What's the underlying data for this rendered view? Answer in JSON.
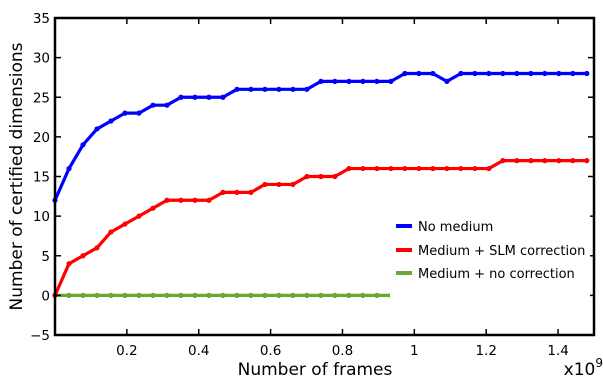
{
  "chart_data": {
    "type": "line",
    "xlabel": "Number of frames",
    "ylabel": "Number of certified dimensions",
    "x_multiplier": "x10",
    "x_multiplier_exp": "9",
    "xlim": [
      0,
      1.5
    ],
    "ylim": [
      -5,
      35
    ],
    "x_tick_values": [
      0.2,
      0.4,
      0.6,
      0.8,
      1.0,
      1.2,
      1.4
    ],
    "x_tick_labels": [
      "0.2",
      "0.4",
      "0.6",
      "0.8",
      "1",
      "1.2",
      "1.4"
    ],
    "y_tick_values": [
      -5,
      0,
      5,
      10,
      15,
      20,
      25,
      30,
      35
    ],
    "y_tick_labels": [
      "−5",
      "0",
      "5",
      "10",
      "15",
      "20",
      "25",
      "30",
      "35"
    ],
    "legend_position": "lower-right",
    "series": [
      {
        "name": "No medium",
        "color": "#0000ff",
        "values": [
          12,
          16,
          19,
          21,
          22,
          23,
          23,
          24,
          24,
          25,
          25,
          25,
          25,
          26,
          26,
          26,
          26,
          26,
          26,
          27,
          27,
          27,
          27,
          27,
          27,
          28,
          28,
          28,
          27,
          28,
          28,
          28,
          28,
          28,
          28,
          28,
          28,
          28,
          28
        ]
      },
      {
        "name": "Medium + SLM correction",
        "color": "#ff0000",
        "values": [
          0,
          4,
          5,
          6,
          8,
          9,
          10,
          11,
          12,
          12,
          12,
          12,
          13,
          13,
          13,
          14,
          14,
          14,
          15,
          15,
          15,
          16,
          16,
          16,
          16,
          16,
          16,
          16,
          16,
          16,
          16,
          16,
          17,
          17,
          17,
          17,
          17,
          17,
          17
        ]
      },
      {
        "name": "Medium + no correction",
        "color": "#6aa832",
        "values": [
          0,
          0,
          0,
          0,
          0,
          0,
          0,
          0,
          0,
          0,
          0,
          0,
          0,
          0,
          0,
          0,
          0,
          0,
          0,
          0,
          0,
          0,
          0,
          0,
          0,
          0,
          0,
          0,
          0,
          0,
          0,
          0,
          0,
          0,
          0,
          0,
          0,
          0,
          0
        ]
      }
    ]
  }
}
